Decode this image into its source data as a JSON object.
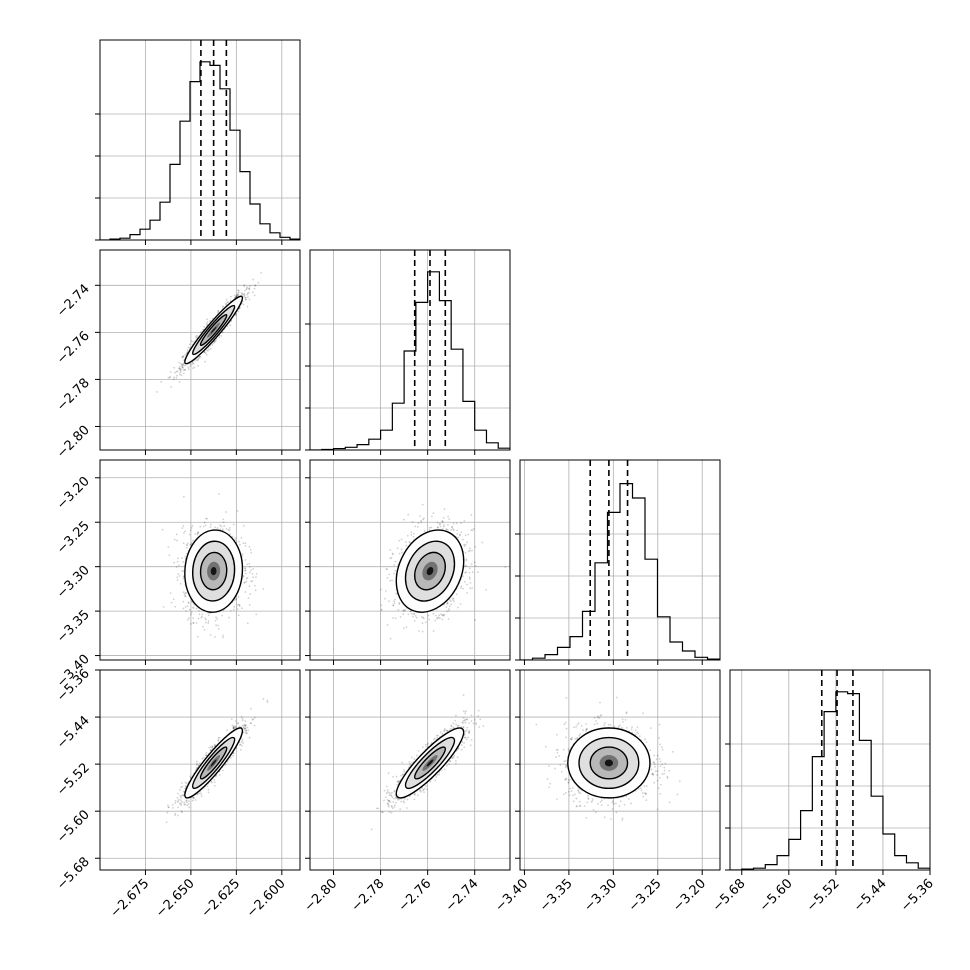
{
  "chart_data": {
    "type": "corner",
    "grid": true,
    "parameters": [
      {
        "axis_ticks": [
          "−2.675",
          "−2.650",
          "−2.625",
          "−2.600"
        ],
        "tick_values": [
          -2.675,
          -2.65,
          -2.625,
          -2.6
        ],
        "range": [
          -2.7,
          -2.59
        ],
        "quantiles": [
          -2.6445,
          -2.6375,
          -2.6305
        ],
        "mean": -2.6375,
        "sd": 0.0072
      },
      {
        "axis_ticks": [
          "−2.80",
          "−2.78",
          "−2.76",
          "−2.74"
        ],
        "tick_values": [
          -2.8,
          -2.78,
          -2.76,
          -2.74
        ],
        "range": [
          -2.81,
          -2.725
        ],
        "quantiles": [
          -2.7655,
          -2.759,
          -2.7525
        ],
        "mean": -2.759,
        "sd": 0.0065
      },
      {
        "axis_ticks": [
          "−3.40",
          "−3.35",
          "−3.30",
          "−3.25",
          "−3.20"
        ],
        "tick_values": [
          -3.4,
          -3.35,
          -3.3,
          -3.25,
          -3.2
        ],
        "range": [
          -3.405,
          -3.18
        ],
        "quantiles": [
          -3.326,
          -3.305,
          -3.284
        ],
        "mean": -3.305,
        "sd": 0.021
      },
      {
        "axis_ticks": [
          "−5.68",
          "−5.60",
          "−5.52",
          "−5.44",
          "−5.36"
        ],
        "tick_values": [
          -5.68,
          -5.6,
          -5.52,
          -5.44,
          -5.36
        ],
        "range": [
          -5.7,
          -5.36
        ],
        "quantiles": [
          -5.544,
          -5.518,
          -5.491
        ],
        "mean": -5.518,
        "sd": 0.027
      }
    ],
    "diagonal_histograms": [
      [
        0.0,
        0.005,
        0.01,
        0.03,
        0.06,
        0.11,
        0.21,
        0.42,
        0.66,
        0.88,
        0.99,
        0.97,
        0.84,
        0.61,
        0.38,
        0.2,
        0.09,
        0.04,
        0.015,
        0.005
      ],
      [
        0.0,
        0.003,
        0.008,
        0.015,
        0.03,
        0.06,
        0.11,
        0.26,
        0.55,
        0.82,
        0.99,
        0.83,
        0.56,
        0.27,
        0.11,
        0.04,
        0.01
      ],
      [
        0.0,
        0.01,
        0.03,
        0.07,
        0.13,
        0.27,
        0.54,
        0.82,
        0.98,
        0.9,
        0.56,
        0.24,
        0.1,
        0.05,
        0.015,
        0.005
      ],
      [
        0.0,
        0.005,
        0.01,
        0.03,
        0.08,
        0.17,
        0.33,
        0.63,
        0.88,
        0.99,
        0.98,
        0.72,
        0.41,
        0.2,
        0.08,
        0.04,
        0.01
      ]
    ],
    "correlations": {
      "1-0": 0.95,
      "2-0": 0.05,
      "2-1": 0.25,
      "3-0": 0.92,
      "3-1": 0.88,
      "3-2": 0.0
    }
  }
}
